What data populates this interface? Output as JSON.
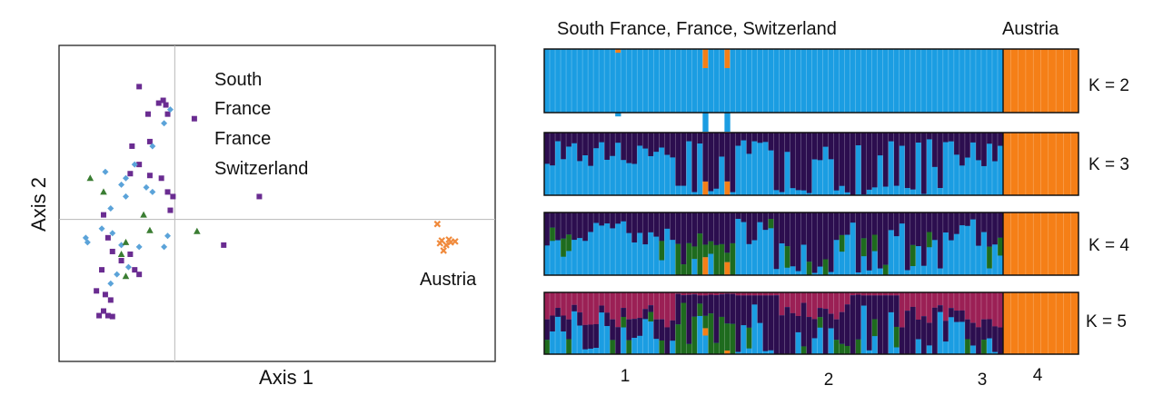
{
  "chart_data": [
    {
      "type": "scatter",
      "xlabel": "Axis 1",
      "ylabel": "Axis 2",
      "xlim": [
        -1.3,
        3.6
      ],
      "ylim": [
        -1.55,
        1.9
      ],
      "annotations": [
        {
          "lines": [
            "South",
            "France",
            "France",
            "Switzerland"
          ]
        },
        {
          "lines": [
            "Austria"
          ]
        }
      ],
      "colors": {
        "purple": "#6a2c91",
        "blue": "#5ba3d9",
        "green": "#3a7d32",
        "orange": "#f08a3c"
      },
      "series": [
        {
          "marker": "square",
          "color": "#6a2c91",
          "points": [
            [
              -0.4,
              1.45
            ],
            [
              -0.3,
              1.15
            ],
            [
              -0.18,
              1.27
            ],
            [
              -0.13,
              1.3
            ],
            [
              -0.1,
              1.25
            ],
            [
              -0.08,
              1.15
            ],
            [
              0.22,
              1.1
            ],
            [
              -0.28,
              0.85
            ],
            [
              -0.48,
              0.8
            ],
            [
              -0.4,
              0.6
            ],
            [
              -0.5,
              0.5
            ],
            [
              -0.28,
              0.48
            ],
            [
              -0.15,
              0.45
            ],
            [
              -0.08,
              0.3
            ],
            [
              -0.02,
              0.25
            ],
            [
              -0.05,
              0.1
            ],
            [
              0.95,
              0.25
            ],
            [
              -0.8,
              0.05
            ],
            [
              -0.75,
              -0.2
            ],
            [
              -0.7,
              -0.35
            ],
            [
              -0.6,
              -0.45
            ],
            [
              -0.5,
              -0.38
            ],
            [
              -0.45,
              -0.55
            ],
            [
              -0.82,
              -0.55
            ],
            [
              0.55,
              -0.28
            ],
            [
              -0.4,
              -0.6
            ],
            [
              -0.88,
              -0.78
            ],
            [
              -0.78,
              -0.82
            ],
            [
              -0.72,
              -0.88
            ],
            [
              -0.8,
              -1.0
            ],
            [
              -0.85,
              -1.05
            ],
            [
              -0.75,
              -1.05
            ],
            [
              -0.7,
              -1.06
            ]
          ]
        },
        {
          "marker": "diamond",
          "color": "#5ba3d9",
          "points": [
            [
              -0.05,
              1.2
            ],
            [
              -0.12,
              1.05
            ],
            [
              -0.25,
              0.8
            ],
            [
              -0.45,
              0.6
            ],
            [
              -0.55,
              0.45
            ],
            [
              -0.78,
              0.52
            ],
            [
              -0.6,
              0.38
            ],
            [
              -0.32,
              0.35
            ],
            [
              -0.25,
              0.3
            ],
            [
              -0.55,
              0.25
            ],
            [
              -0.72,
              0.12
            ],
            [
              -0.82,
              -0.1
            ],
            [
              -0.7,
              -0.15
            ],
            [
              -1.0,
              -0.2
            ],
            [
              -0.98,
              -0.25
            ],
            [
              -0.6,
              -0.28
            ],
            [
              -0.4,
              -0.3
            ],
            [
              -0.08,
              -0.18
            ],
            [
              -0.12,
              -0.3
            ],
            [
              -0.52,
              -0.52
            ],
            [
              -0.65,
              -0.6
            ],
            [
              -0.72,
              -0.7
            ]
          ]
        },
        {
          "marker": "triangle",
          "color": "#3a7d32",
          "points": [
            [
              -0.95,
              0.45
            ],
            [
              -0.8,
              0.3
            ],
            [
              -0.35,
              0.05
            ],
            [
              -0.28,
              -0.12
            ],
            [
              -0.55,
              -0.25
            ],
            [
              -0.6,
              -0.38
            ],
            [
              -0.55,
              -0.62
            ],
            [
              0.25,
              -0.13
            ]
          ]
        },
        {
          "marker": "cross",
          "color": "#f08a3c",
          "points": [
            [
              2.95,
              -0.05
            ],
            [
              3.0,
              -0.23
            ],
            [
              3.08,
              -0.22
            ],
            [
              3.05,
              -0.28
            ],
            [
              3.1,
              -0.25
            ],
            [
              3.02,
              -0.34
            ],
            [
              3.15,
              -0.24
            ],
            [
              2.98,
              -0.26
            ]
          ]
        }
      ]
    },
    {
      "type": "bar",
      "stacked": true,
      "group_labels": [
        "South France, France, Switzerland",
        "Austria"
      ],
      "cluster_numbers": [
        "1",
        "2",
        "3",
        "4"
      ],
      "panels": [
        {
          "label": "K = 2"
        },
        {
          "label": "K = 3"
        },
        {
          "label": "K = 4"
        },
        {
          "label": "K = 5"
        }
      ],
      "colors": {
        "blue": "#1b9de2",
        "orange": "#f57f17",
        "darkpurple": "#2c0e4f",
        "green": "#1e6b1e",
        "magenta": "#9b2055"
      }
    }
  ]
}
